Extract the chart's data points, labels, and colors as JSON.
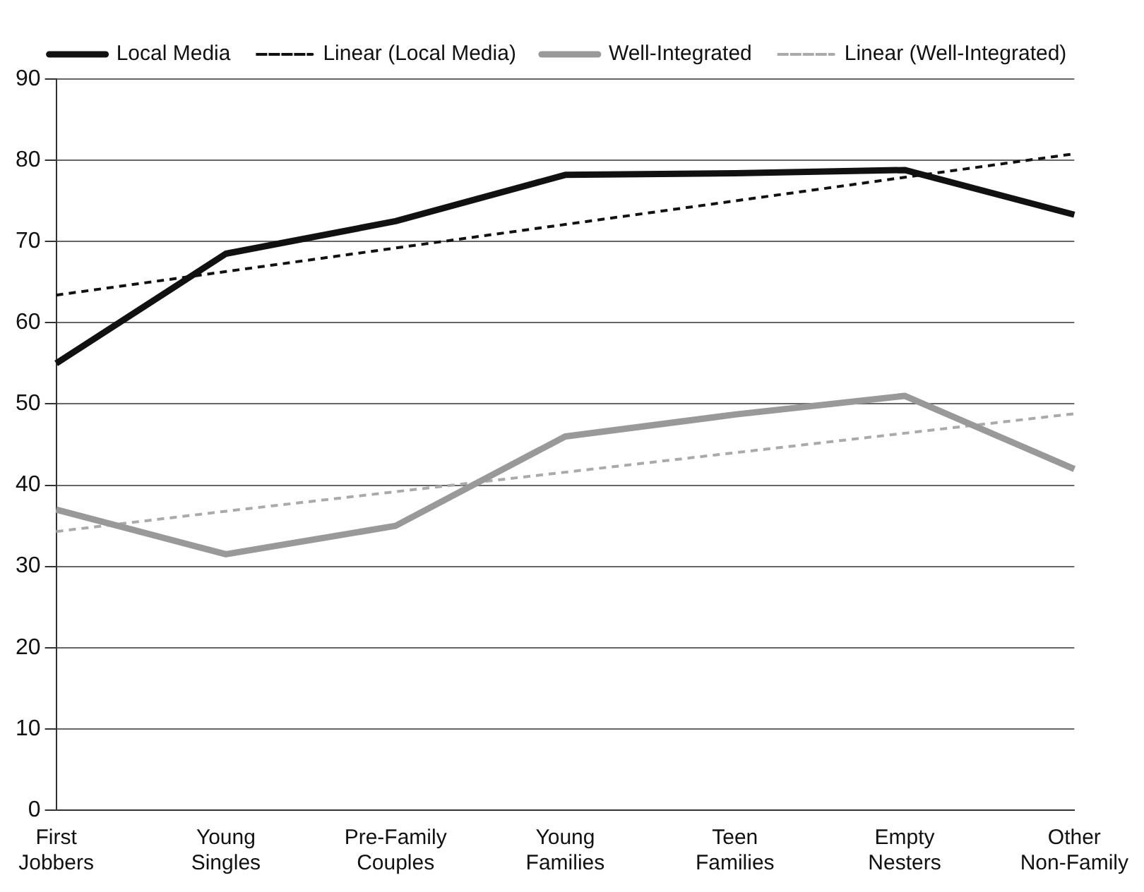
{
  "chart_data": {
    "type": "line",
    "categories": [
      "First Jobbers",
      "Young Singles",
      "Pre-Family Couples",
      "Young Families",
      "Teen Families",
      "Empty Nesters",
      "Other Non-Family"
    ],
    "series": [
      {
        "name": "Local Media",
        "color": "#111111",
        "values": [
          55,
          68.5,
          72.5,
          78.2,
          78.4,
          78.8,
          73.3
        ],
        "line_style": "solid"
      },
      {
        "name": "Linear (Local Media)",
        "color": "#111111",
        "values": [
          63.4,
          66.3,
          69.2,
          72.1,
          75.0,
          77.9,
          80.8
        ],
        "line_style": "dashed"
      },
      {
        "name": "Well-Integrated",
        "color": "#999999",
        "values": [
          37,
          31.5,
          35,
          46,
          48.7,
          51,
          42
        ],
        "line_style": "solid"
      },
      {
        "name": "Linear (Well-Integrated)",
        "color": "#aaaaaa",
        "values": [
          34.3,
          36.8,
          39.2,
          41.6,
          44.0,
          46.4,
          48.8
        ],
        "line_style": "dashed"
      }
    ],
    "ylim": [
      0,
      90
    ],
    "yticks": [
      0,
      10,
      20,
      30,
      40,
      50,
      60,
      70,
      80,
      90
    ],
    "grid": "y",
    "legend": "top",
    "marker": "none"
  }
}
